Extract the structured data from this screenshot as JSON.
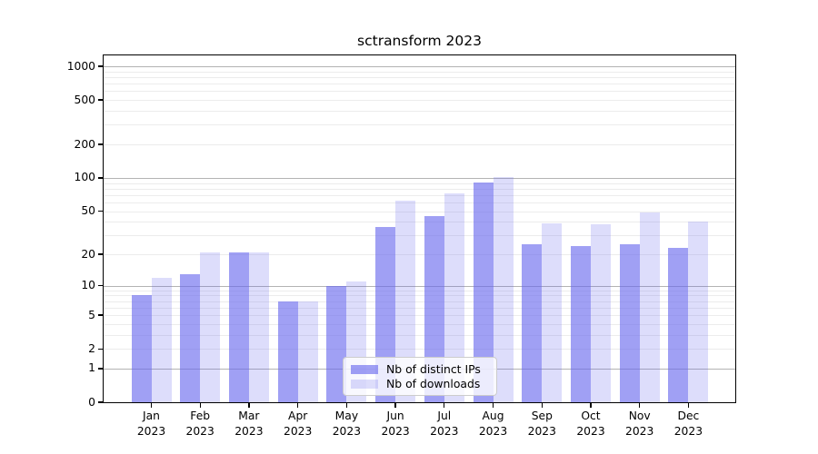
{
  "chart_data": {
    "type": "bar",
    "title": "sctransform 2023",
    "months": [
      "Jan",
      "Feb",
      "Mar",
      "Apr",
      "May",
      "Jun",
      "Jul",
      "Aug",
      "Sep",
      "Oct",
      "Nov",
      "Dec"
    ],
    "year": "2023",
    "series": [
      {
        "name": "Nb of distinct IPs",
        "color": "rgba(102,102,238,0.62)",
        "values": [
          8,
          13,
          21,
          7,
          10,
          36,
          45,
          91,
          25,
          24,
          25,
          23
        ]
      },
      {
        "name": "Nb of downloads",
        "color": "rgba(102,102,238,0.22)",
        "values": [
          12,
          21,
          21,
          7,
          11,
          62,
          72,
          102,
          39,
          38,
          49,
          40
        ]
      }
    ],
    "y_ticks": [
      1000,
      500,
      200,
      100,
      50,
      20,
      10,
      5,
      2,
      1,
      0
    ],
    "y_scale": "log10(value+1)",
    "y_major_gridlines": [
      1,
      10,
      100,
      1000
    ],
    "grid": true,
    "legend_position": "lower center",
    "colors": {
      "bars_base": "#6666ee",
      "major_grid": "#b3b3b3",
      "minor_grid": "#ececec",
      "axis": "#000000",
      "text": "#000000",
      "legend_border": "#cccccc"
    }
  }
}
